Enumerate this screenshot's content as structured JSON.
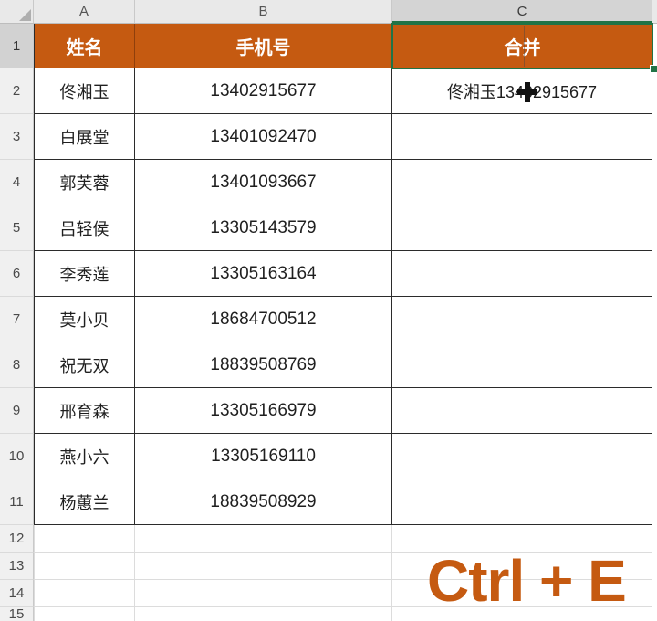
{
  "sheet": {
    "column_headers": [
      "A",
      "B",
      "C"
    ],
    "selected_cell": "C1",
    "row_numbers": [
      "1",
      "2",
      "3",
      "4",
      "5",
      "6",
      "7",
      "8",
      "9",
      "10",
      "11",
      "12",
      "13",
      "14",
      "15"
    ],
    "table": {
      "headers": {
        "name": "姓名",
        "phone": "手机号",
        "merge": "合并"
      },
      "rows": [
        {
          "name": "佟湘玉",
          "phone": "13402915677",
          "merge": "佟湘玉13402915677"
        },
        {
          "name": "白展堂",
          "phone": "13401092470",
          "merge": ""
        },
        {
          "name": "郭芙蓉",
          "phone": "13401093667",
          "merge": ""
        },
        {
          "name": "吕轻侯",
          "phone": "13305143579",
          "merge": ""
        },
        {
          "name": "李秀莲",
          "phone": "13305163164",
          "merge": ""
        },
        {
          "name": "莫小贝",
          "phone": "18684700512",
          "merge": ""
        },
        {
          "name": "祝无双",
          "phone": "18839508769",
          "merge": ""
        },
        {
          "name": "邢育森",
          "phone": "13305166979",
          "merge": ""
        },
        {
          "name": "燕小六",
          "phone": "13305169110",
          "merge": ""
        },
        {
          "name": "杨蕙兰",
          "phone": "18839508929",
          "merge": ""
        }
      ]
    },
    "shortcut_hint": "Ctrl + E",
    "icons": {
      "corner": "select-all-triangle-icon",
      "cursor": "excel-cross-cursor-icon"
    },
    "colors": {
      "header_fill": "#C55A11",
      "header_text": "#FFFFFF",
      "selection_border": "#217346",
      "shortcut_text": "#C55A11",
      "table_border": "#2B2B2B",
      "gridline": "#DCDCDC",
      "header_strip_bg": "#E9E9E9",
      "selected_header_bg": "#D4D4D4"
    }
  }
}
